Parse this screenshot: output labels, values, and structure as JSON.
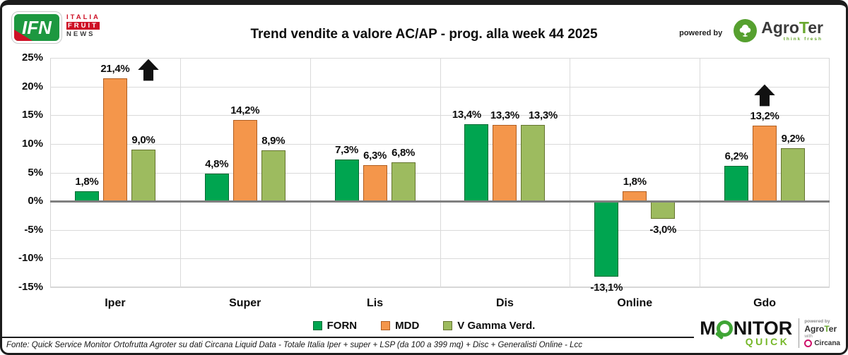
{
  "header": {
    "logo_ifn": {
      "abbr": "IFN",
      "lines": [
        "ITALIA",
        "FRUIT",
        "NEWS"
      ]
    },
    "title": "Trend vendite a valore AC/AP - prog. alla week 44 2025",
    "powered_by": "powered by",
    "agroter": {
      "name_parts": [
        "Agro",
        "T",
        "er"
      ],
      "tagline": "think fresh"
    }
  },
  "chart_data": {
    "type": "bar",
    "title": "Trend vendite a valore AC/AP - prog. alla week 44 2025",
    "categories": [
      "Iper",
      "Super",
      "Lis",
      "Dis",
      "Online",
      "Gdo"
    ],
    "series": [
      {
        "name": "FORN",
        "color": "#00A550",
        "border_color": "#046A33",
        "values": [
          1.8,
          4.8,
          7.3,
          13.4,
          -13.1,
          6.2
        ],
        "labels": [
          "1,8%",
          "4,8%",
          "7,3%",
          "13,4%",
          "-13,1%",
          "6,2%"
        ]
      },
      {
        "name": "MDD",
        "color": "#F4964B",
        "border_color": "#B05E21",
        "values": [
          21.4,
          14.2,
          6.3,
          13.3,
          1.8,
          13.2
        ],
        "labels": [
          "21,4%",
          "14,2%",
          "6,3%",
          "13,3%",
          "1,8%",
          "13,2%"
        ]
      },
      {
        "name": "V Gamma Verd.",
        "color": "#9DBB5F",
        "border_color": "#65742F",
        "values": [
          9.0,
          8.9,
          6.8,
          13.3,
          -3.0,
          9.2
        ],
        "labels": [
          "9,0%",
          "8,9%",
          "6,8%",
          "13,3%",
          "-3,0%",
          "9,2%"
        ]
      }
    ],
    "y_axis": {
      "min": -15,
      "max": 25,
      "step": 5,
      "tick_labels": [
        "25%",
        "20%",
        "15%",
        "10%",
        "5%",
        "0%",
        "-5%",
        "-10%",
        "-15%"
      ]
    },
    "annotations": [
      {
        "type": "up-arrow",
        "category": "Iper",
        "series": "MDD",
        "placement": "right-of-label",
        "color": "#111111"
      },
      {
        "type": "up-arrow",
        "category": "Gdo",
        "series": "MDD",
        "placement": "above-label",
        "color": "#111111"
      }
    ],
    "legend_position": "bottom",
    "grid": true
  },
  "footer": {
    "source": "Fonte: Quick Service Monitor Ortofrutta Agroter su dati Circana Liquid Data - Totale Italia Iper + super + LSP (da 100 a 399 mq) + Disc + Generalisti Online - Lcc",
    "monitor_quick": {
      "word_prefix": "M",
      "word_rest": "NITOR",
      "sub": "QUICK",
      "powered_by": "powered by",
      "agroter_parts": [
        "Agro",
        "T",
        "er"
      ],
      "with_label": "with",
      "circana": "Circana"
    }
  }
}
